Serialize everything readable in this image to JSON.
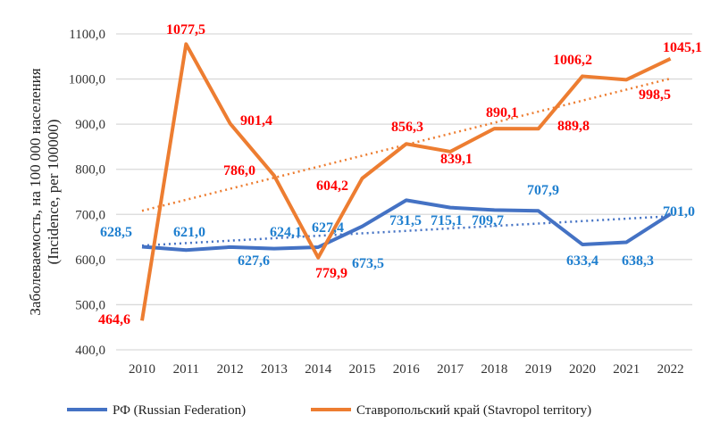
{
  "chart_data": {
    "type": "line",
    "title": "",
    "xlabel": "",
    "ylabel": [
      "Заболеваемость, на 100 000 населения",
      "(Incidence, per 100000)"
    ],
    "x": [
      "2010",
      "2011",
      "2012",
      "2013",
      "2014",
      "2015",
      "2016",
      "2017",
      "2018",
      "2019",
      "2020",
      "2021",
      "2022"
    ],
    "yticks": [
      "400,0",
      "500,0",
      "600,0",
      "700,0",
      "800,0",
      "900,0",
      "1000,0",
      "1100,0"
    ],
    "ylim": [
      400,
      1100
    ],
    "grid": true,
    "legend_position": "bottom",
    "series": [
      {
        "name": "РФ (Russian Federation)",
        "color": "#4472C4",
        "label_color": "#1F7FCF",
        "values": [
          628.5,
          621.0,
          627.6,
          624.1,
          627.4,
          673.5,
          731.5,
          715.1,
          709.7,
          707.9,
          633.4,
          638.3,
          701.0
        ],
        "labels": [
          "628,5",
          "621,0",
          "627,6",
          "624,1",
          "627,4",
          "673,5",
          "731,5",
          "715,1",
          "709,7",
          "707,9",
          "633,4",
          "638,3",
          "701,0"
        ],
        "trend": [
          631,
          696
        ]
      },
      {
        "name": "Ставропольский край (Stavropol territory)",
        "color": "#ED7D31",
        "label_color": "#FF0000",
        "values": [
          464.6,
          1077.5,
          901.4,
          786.0,
          604.2,
          779.9,
          856.3,
          839.1,
          890.1,
          889.8,
          1006.2,
          998.5,
          1045.1
        ],
        "labels": [
          "464,6",
          "1077,5",
          "901,4",
          "786,0",
          "604,2",
          "779,9",
          "856,3",
          "839,1",
          "890,1",
          "889,8",
          "1006,2",
          "998,5",
          "1045,1"
        ],
        "trend": [
          708,
          1001
        ]
      }
    ]
  }
}
